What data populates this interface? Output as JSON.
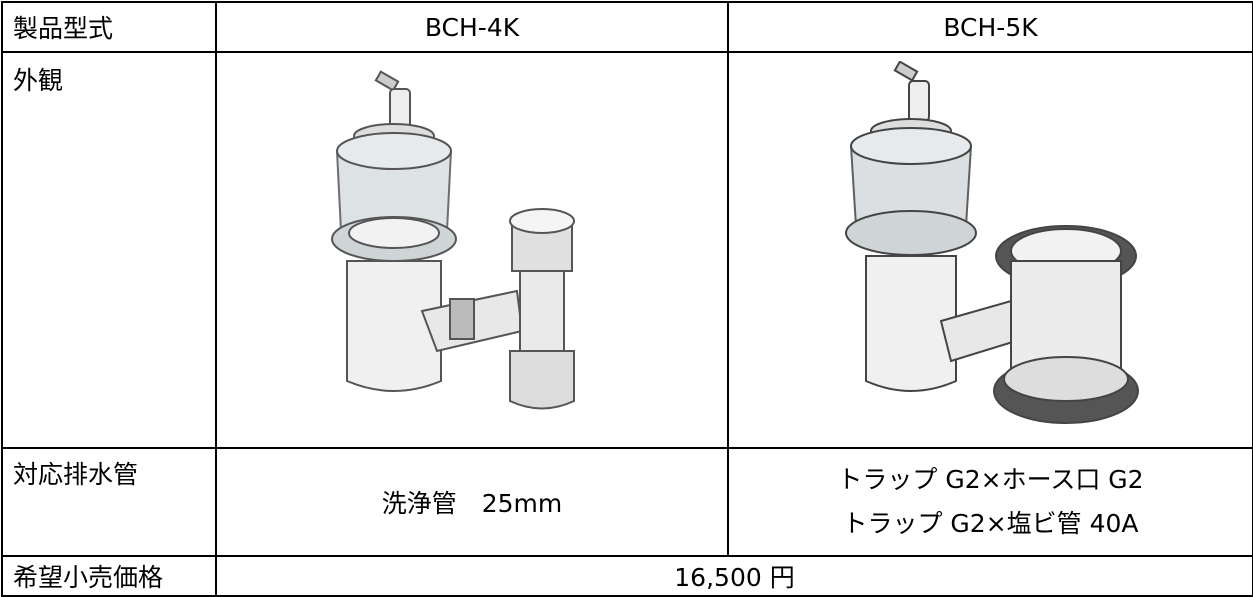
{
  "table": {
    "header": [
      "製品型式",
      "BCH-4K",
      "BCH-5K"
    ],
    "rows": [
      [
        "外観"
      ],
      [
        "対応排水管",
        "洗浄管　25mm",
        [
          "トラップ G2×ホース口 G2",
          "トラップ G2×塩ビ管 40A"
        ]
      ],
      [
        "希望小売価格",
        "16,500 円"
      ]
    ]
  }
}
